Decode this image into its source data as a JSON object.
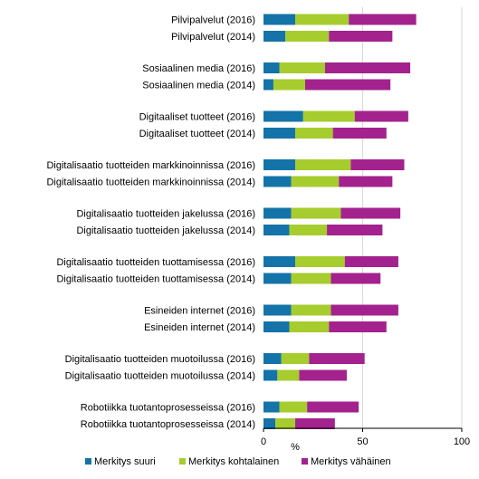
{
  "chart_data": {
    "type": "bar",
    "orientation": "horizontal",
    "stacked": true,
    "categories": [
      "Pilvipalvelut (2016)",
      "Pilvipalvelut (2014)",
      "Sosiaalinen media (2016)",
      "Sosiaalinen media (2014)",
      "Digitaaliset tuotteet (2016)",
      "Digitaaliset tuotteet (2014)",
      "Digitalisaatio tuotteiden markkinoinnissa (2016)",
      "Digitalisaatio tuotteiden markkinoinnissa (2014)",
      "Digitalisaatio tuotteiden jakelussa (2016)",
      "Digitalisaatio tuotteiden jakelussa (2014)",
      "Digitalisaatio tuotteiden tuottamisessa (2016)",
      "Digitalisaatio tuotteiden tuottamisessa (2014)",
      "Esineiden internet (2016)",
      "Esineiden internet (2014)",
      "Digitalisaatio tuotteiden muotoilussa (2016)",
      "Digitalisaatio tuotteiden muotoilussa (2014)",
      "Robotiikka tuotantoprosesseissa (2016)",
      "Robotiikka tuotantoprosesseissa (2014)"
    ],
    "series": [
      {
        "name": "Merkitys suuri",
        "color": "#1473a8",
        "values": [
          16,
          11,
          8,
          5,
          20,
          16,
          16,
          14,
          14,
          13,
          16,
          14,
          14,
          13,
          9,
          7,
          8,
          6
        ]
      },
      {
        "name": "Merkitys kohtalainen",
        "color": "#a6cc2e",
        "values": [
          27,
          22,
          23,
          16,
          26,
          19,
          28,
          24,
          25,
          19,
          25,
          20,
          20,
          20,
          14,
          11,
          14,
          10
        ]
      },
      {
        "name": "Merkitys vähäinen",
        "color": "#a3228d",
        "values": [
          34,
          32,
          43,
          43,
          27,
          27,
          27,
          27,
          30,
          28,
          27,
          25,
          34,
          29,
          28,
          24,
          26,
          20
        ]
      }
    ],
    "xlabel": "%",
    "ylabel": "",
    "xlim": [
      0,
      100
    ],
    "xticks": [
      0,
      50,
      100
    ],
    "grid": true,
    "legend": "bottom"
  }
}
